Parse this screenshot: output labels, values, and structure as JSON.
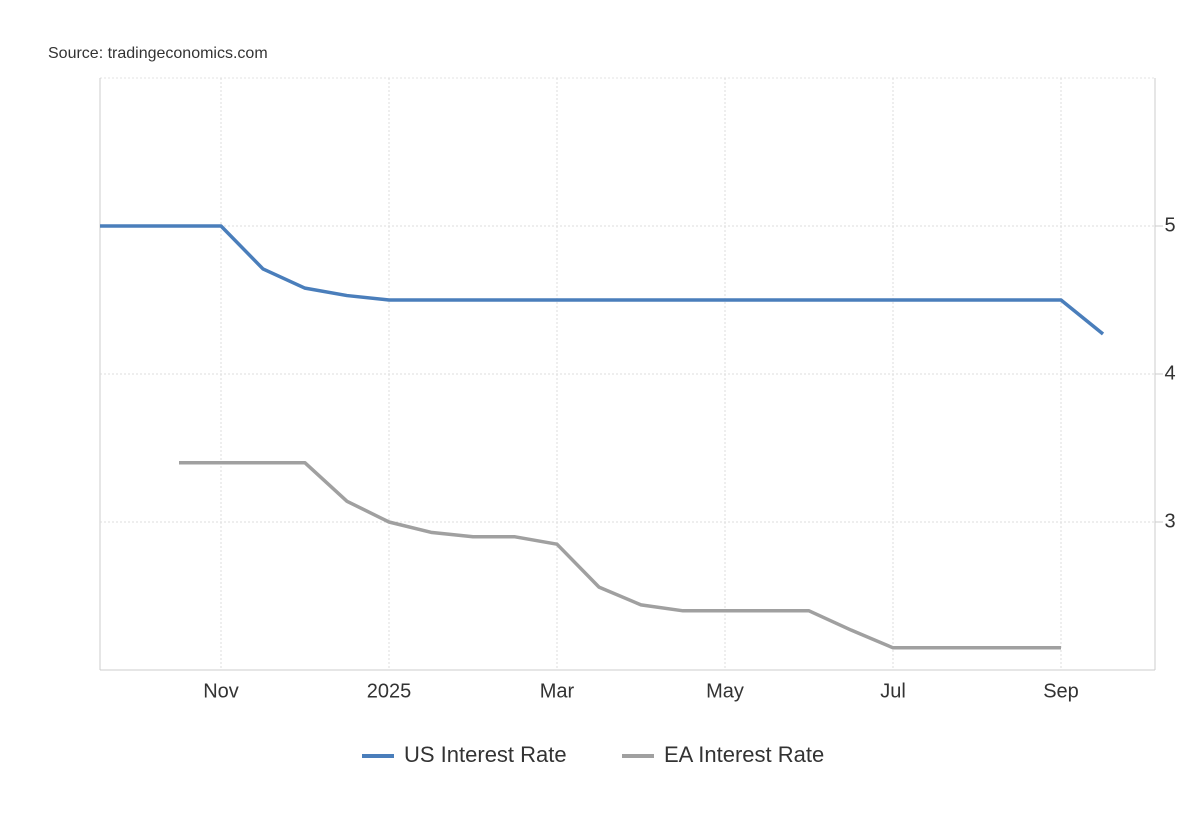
{
  "chart_data": {
    "type": "line",
    "source": "Source: tradingeconomics.com",
    "categories": [
      null,
      null,
      null,
      "Nov",
      null,
      null,
      null,
      "2025",
      null,
      null,
      null,
      "Mar",
      null,
      null,
      null,
      "May",
      null,
      null,
      null,
      "Jul",
      null,
      null,
      null,
      "Sep",
      null
    ],
    "series": [
      {
        "name": "US Interest Rate",
        "color": "#4a7ebb",
        "values": [
          5.0,
          5.0,
          5.0,
          5.0,
          4.71,
          4.58,
          4.53,
          4.5,
          4.5,
          4.5,
          4.5,
          4.5,
          4.5,
          4.5,
          4.5,
          4.5,
          4.5,
          4.5,
          4.5,
          4.5,
          4.5,
          4.5,
          4.5,
          4.5,
          4.27
        ]
      },
      {
        "name": "EA Interest Rate",
        "color": "#a0a0a0",
        "values": [
          null,
          null,
          3.4,
          3.4,
          3.4,
          3.4,
          3.14,
          3.0,
          2.93,
          2.9,
          2.9,
          2.85,
          2.56,
          2.44,
          2.4,
          2.4,
          2.4,
          2.4,
          2.27,
          2.15,
          2.15,
          2.15,
          2.15,
          2.15,
          null
        ]
      }
    ],
    "ylim": [
      2,
      6
    ],
    "yticks": [
      3,
      4,
      5
    ],
    "grid": true,
    "legend": "bottom"
  }
}
